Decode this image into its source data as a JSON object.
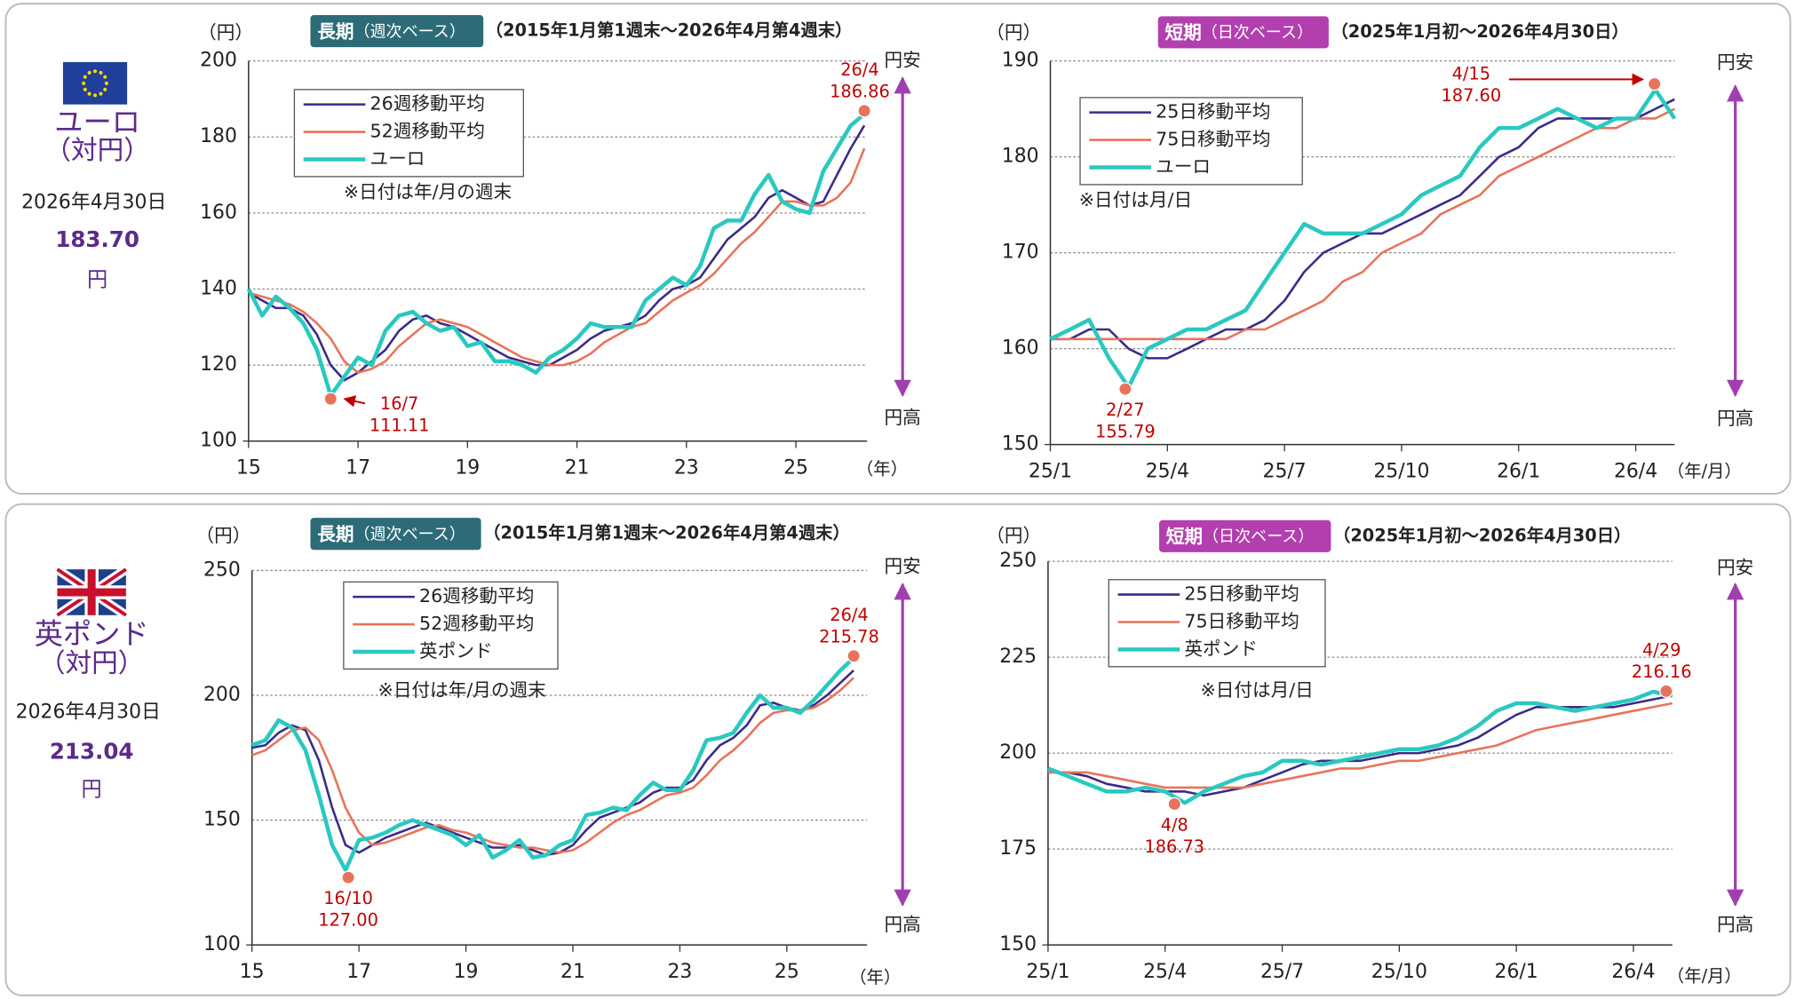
{
  "currencies": [
    {
      "name": "ユーロ",
      "sub": "（対円）",
      "date": "2026年4月30日",
      "value": "183.70",
      "unit": "円"
    },
    {
      "name": "英ポンド",
      "sub": "（対円）",
      "date": "2026年4月30日",
      "value": "213.04",
      "unit": "円"
    }
  ],
  "chart_data": [
    {
      "type": "line",
      "badge": "長期",
      "badge_note": "（週次ベース）",
      "badge_color": "#2e6b78",
      "period": "（2015年1月第1週末～2026年4月第4週末）",
      "y_label": "（円）",
      "x_label": "（年）",
      "note": "※日付は年/月の週末",
      "up_label": "円安",
      "down_label": "円高",
      "grid": true,
      "xlim": [
        2015,
        2026.3
      ],
      "ylim": [
        100,
        200
      ],
      "yticks": [
        100,
        120,
        140,
        160,
        180,
        200
      ],
      "xticks": [
        {
          "value": 2015,
          "label": "15"
        },
        {
          "value": 2017,
          "label": "17"
        },
        {
          "value": 2019,
          "label": "19"
        },
        {
          "value": 2021,
          "label": "21"
        },
        {
          "value": 2023,
          "label": "23"
        },
        {
          "value": 2025,
          "label": "25"
        }
      ],
      "x": [
        2015,
        2015.25,
        2015.5,
        2015.75,
        2016,
        2016.25,
        2016.5,
        2016.75,
        2017,
        2017.25,
        2017.5,
        2017.75,
        2018,
        2018.25,
        2018.5,
        2018.75,
        2019,
        2019.25,
        2019.5,
        2019.75,
        2020,
        2020.25,
        2020.5,
        2020.75,
        2021,
        2021.25,
        2021.5,
        2021.75,
        2022,
        2022.25,
        2022.5,
        2022.75,
        2023,
        2023.25,
        2023.5,
        2023.75,
        2024,
        2024.25,
        2024.5,
        2024.75,
        2025,
        2025.25,
        2025.5,
        2025.75,
        2026,
        2026.25
      ],
      "series": [
        {
          "name": "26週移動平均",
          "color": "#3b2a8a",
          "width": 2,
          "values": [
            139,
            137,
            135,
            135,
            133,
            128,
            120,
            116,
            118,
            121,
            124,
            129,
            132,
            133,
            131,
            130,
            128,
            126,
            124,
            122,
            121,
            120,
            120,
            122,
            124,
            127,
            129,
            130,
            131,
            133,
            137,
            140,
            141,
            143,
            148,
            153,
            156,
            159,
            164,
            166,
            164,
            162,
            163,
            170,
            177,
            183
          ]
        },
        {
          "name": "52週移動平均",
          "color": "#e8735a",
          "width": 2,
          "values": [
            139,
            138,
            137,
            136,
            134,
            131,
            127,
            121,
            118,
            119,
            121,
            125,
            128,
            131,
            132,
            131,
            130,
            128,
            126,
            124,
            122,
            121,
            120,
            120,
            121,
            123,
            126,
            128,
            130,
            131,
            134,
            137,
            139,
            141,
            144,
            148,
            152,
            155,
            159,
            163,
            163,
            162,
            162,
            164,
            168,
            177
          ]
        },
        {
          "name": "ユーロ",
          "color": "#2ac8c0",
          "width": 3.5,
          "values": [
            140,
            133,
            138,
            135,
            131,
            124,
            112,
            117,
            122,
            120,
            129,
            133,
            134,
            131,
            129,
            130,
            125,
            126,
            121,
            121,
            120,
            118,
            122,
            124,
            127,
            131,
            130,
            130,
            130,
            137,
            140,
            143,
            141,
            146,
            156,
            158,
            158,
            165,
            170,
            163,
            161,
            160,
            171,
            177,
            183,
            186
          ]
        }
      ],
      "annotations": [
        {
          "x": 2026.25,
          "value": 186.86,
          "text": "26/4"
        },
        {
          "x": 2016.5,
          "value": 111.11,
          "text": "16/7"
        }
      ]
    },
    {
      "type": "line",
      "badge": "短期",
      "badge_note": "（日次ベース）",
      "badge_color": "#b23fae",
      "period": "（2025年1月初～2026年4月30日）",
      "y_label": "（円）",
      "x_label": "（年/月）",
      "note": "※日付は月/日",
      "up_label": "円安",
      "down_label": "円高",
      "grid": true,
      "xlim": [
        2025,
        2026.333
      ],
      "ylim": [
        150,
        190
      ],
      "yticks": [
        150,
        160,
        170,
        180,
        190
      ],
      "xticks": [
        {
          "value": 2025,
          "label": "25/1"
        },
        {
          "value": 2025.25,
          "label": "25/4"
        },
        {
          "value": 2025.5,
          "label": "25/7"
        },
        {
          "value": 2025.75,
          "label": "25/10"
        },
        {
          "value": 2026,
          "label": "26/1"
        },
        {
          "value": 2026.25,
          "label": "26/4"
        }
      ],
      "x": [
        2025,
        2025.042,
        2025.083,
        2025.125,
        2025.167,
        2025.208,
        2025.25,
        2025.292,
        2025.333,
        2025.375,
        2025.417,
        2025.458,
        2025.5,
        2025.542,
        2025.583,
        2025.625,
        2025.667,
        2025.708,
        2025.75,
        2025.792,
        2025.833,
        2025.875,
        2025.917,
        2025.958,
        2026,
        2026.042,
        2026.083,
        2026.125,
        2026.167,
        2026.208,
        2026.25,
        2026.292,
        2026.333
      ],
      "series": [
        {
          "name": "25日移動平均",
          "color": "#3b2a8a",
          "width": 2,
          "values": [
            161,
            161,
            162,
            162,
            160,
            159,
            159,
            160,
            161,
            162,
            162,
            163,
            165,
            168,
            170,
            171,
            172,
            172,
            173,
            174,
            175,
            176,
            178,
            180,
            181,
            183,
            184,
            184,
            184,
            184,
            184,
            185,
            186
          ]
        },
        {
          "name": "75日移動平均",
          "color": "#e8735a",
          "width": 2,
          "values": [
            161,
            161,
            161,
            161,
            161,
            161,
            161,
            161,
            161,
            161,
            162,
            162,
            163,
            164,
            165,
            167,
            168,
            170,
            171,
            172,
            174,
            175,
            176,
            178,
            179,
            180,
            181,
            182,
            183,
            183,
            184,
            184,
            185
          ]
        },
        {
          "name": "ユーロ",
          "color": "#2ac8c0",
          "width": 3.5,
          "values": [
            161,
            162,
            163,
            159,
            156,
            160,
            161,
            162,
            162,
            163,
            164,
            167,
            170,
            173,
            172,
            172,
            172,
            173,
            174,
            176,
            177,
            178,
            181,
            183,
            183,
            184,
            185,
            184,
            183,
            184,
            184,
            187,
            184
          ]
        }
      ],
      "annotations": [
        {
          "x": 2026.29,
          "value": 187.6,
          "value_label": "187.60",
          "text": "4/15"
        },
        {
          "x": 2025.16,
          "value": 155.79,
          "text": "2/27"
        }
      ]
    },
    {
      "type": "line",
      "badge": "長期",
      "badge_note": "（週次ベース）",
      "badge_color": "#2e6b78",
      "period": "（2015年1月第1週末～2026年4月第4週末）",
      "y_label": "（円）",
      "x_label": "（年）",
      "note": "※日付は年/月の週末",
      "up_label": "円安",
      "down_label": "円高",
      "grid": true,
      "xlim": [
        2015,
        2026.5
      ],
      "ylim": [
        100,
        250
      ],
      "yticks": [
        100,
        150,
        200,
        250
      ],
      "xticks": [
        {
          "value": 2015,
          "label": "15"
        },
        {
          "value": 2017,
          "label": "17"
        },
        {
          "value": 2019,
          "label": "19"
        },
        {
          "value": 2021,
          "label": "21"
        },
        {
          "value": 2023,
          "label": "23"
        },
        {
          "value": 2025,
          "label": "25"
        }
      ],
      "x": [
        2015,
        2015.25,
        2015.5,
        2015.75,
        2016,
        2016.25,
        2016.5,
        2016.75,
        2017,
        2017.25,
        2017.5,
        2017.75,
        2018,
        2018.25,
        2018.5,
        2018.75,
        2019,
        2019.25,
        2019.5,
        2019.75,
        2020,
        2020.25,
        2020.5,
        2020.75,
        2021,
        2021.25,
        2021.5,
        2021.75,
        2022,
        2022.25,
        2022.5,
        2022.75,
        2023,
        2023.25,
        2023.5,
        2023.75,
        2024,
        2024.25,
        2024.5,
        2024.75,
        2025,
        2025.25,
        2025.5,
        2025.75,
        2026,
        2026.25
      ],
      "series": [
        {
          "name": "26週移動平均",
          "color": "#3b2a8a",
          "width": 2,
          "values": [
            179,
            180,
            185,
            188,
            186,
            174,
            155,
            140,
            137,
            140,
            143,
            145,
            147,
            149,
            147,
            145,
            143,
            141,
            139,
            139,
            140,
            138,
            136,
            137,
            140,
            146,
            151,
            153,
            155,
            157,
            161,
            163,
            163,
            166,
            174,
            180,
            183,
            188,
            196,
            197,
            195,
            194,
            196,
            200,
            205,
            210
          ]
        },
        {
          "name": "52週移動平均",
          "color": "#e8735a",
          "width": 2,
          "values": [
            176,
            178,
            182,
            186,
            187,
            182,
            170,
            155,
            145,
            140,
            141,
            143,
            145,
            147,
            148,
            146,
            145,
            143,
            141,
            140,
            139,
            139,
            138,
            137,
            138,
            141,
            145,
            149,
            152,
            154,
            157,
            160,
            161,
            163,
            168,
            174,
            178,
            183,
            189,
            193,
            194,
            194,
            195,
            198,
            202,
            207
          ]
        },
        {
          "name": "英ポンド",
          "color": "#2ac8c0",
          "width": 3.5,
          "values": [
            180,
            182,
            190,
            187,
            178,
            160,
            140,
            130,
            142,
            143,
            145,
            148,
            150,
            148,
            146,
            144,
            140,
            144,
            135,
            138,
            142,
            135,
            136,
            140,
            142,
            152,
            153,
            155,
            154,
            160,
            165,
            162,
            162,
            170,
            182,
            183,
            185,
            193,
            200,
            195,
            195,
            193,
            198,
            204,
            210,
            215
          ]
        }
      ],
      "annotations": [
        {
          "x": 2026.25,
          "value": 215.78,
          "text": "26/4"
        },
        {
          "x": 2016.8,
          "value": 127,
          "value_label": "127.00",
          "text": "16/10"
        }
      ]
    },
    {
      "type": "line",
      "badge": "短期",
      "badge_note": "（日次ベース）",
      "badge_color": "#b23fae",
      "period": "（2025年1月初～2026年4月30日）",
      "y_label": "（円）",
      "x_label": "（年/月）",
      "note": "※日付は月/日",
      "up_label": "円安",
      "down_label": "円高",
      "grid": true,
      "xlim": [
        2025,
        2026.333
      ],
      "ylim": [
        150,
        250
      ],
      "yticks": [
        150,
        175,
        200,
        225,
        250
      ],
      "xticks": [
        {
          "value": 2025,
          "label": "25/1"
        },
        {
          "value": 2025.25,
          "label": "25/4"
        },
        {
          "value": 2025.5,
          "label": "25/7"
        },
        {
          "value": 2025.75,
          "label": "25/10"
        },
        {
          "value": 2026,
          "label": "26/1"
        },
        {
          "value": 2026.25,
          "label": "26/4"
        }
      ],
      "x": [
        2025,
        2025.042,
        2025.083,
        2025.125,
        2025.167,
        2025.208,
        2025.25,
        2025.292,
        2025.333,
        2025.375,
        2025.417,
        2025.458,
        2025.5,
        2025.542,
        2025.583,
        2025.625,
        2025.667,
        2025.708,
        2025.75,
        2025.792,
        2025.833,
        2025.875,
        2025.917,
        2025.958,
        2026,
        2026.042,
        2026.083,
        2026.125,
        2026.167,
        2026.208,
        2026.25,
        2026.292,
        2026.333
      ],
      "series": [
        {
          "name": "25日移動平均",
          "color": "#3b2a8a",
          "width": 2,
          "values": [
            195,
            195,
            194,
            192,
            191,
            190,
            190,
            190,
            189,
            190,
            191,
            193,
            195,
            197,
            198,
            198,
            198,
            199,
            200,
            200,
            201,
            202,
            204,
            207,
            210,
            212,
            212,
            212,
            212,
            212,
            213,
            214,
            215
          ]
        },
        {
          "name": "75日移動平均",
          "color": "#e8735a",
          "width": 2,
          "values": [
            195,
            195,
            195,
            194,
            193,
            192,
            191,
            191,
            191,
            191,
            191,
            192,
            193,
            194,
            195,
            196,
            196,
            197,
            198,
            198,
            199,
            200,
            201,
            202,
            204,
            206,
            207,
            208,
            209,
            210,
            211,
            212,
            213
          ]
        },
        {
          "name": "英ポンド",
          "color": "#2ac8c0",
          "width": 3.5,
          "values": [
            196,
            194,
            192,
            190,
            190,
            191,
            190,
            187,
            190,
            192,
            194,
            195,
            198,
            198,
            197,
            198,
            199,
            200,
            201,
            201,
            202,
            204,
            207,
            211,
            213,
            213,
            212,
            211,
            212,
            213,
            214,
            216,
            215
          ]
        }
      ],
      "annotations": [
        {
          "x": 2026.32,
          "value": 216.16,
          "text": "4/29"
        },
        {
          "x": 2025.27,
          "value": 186.73,
          "text": "4/8"
        }
      ]
    }
  ]
}
